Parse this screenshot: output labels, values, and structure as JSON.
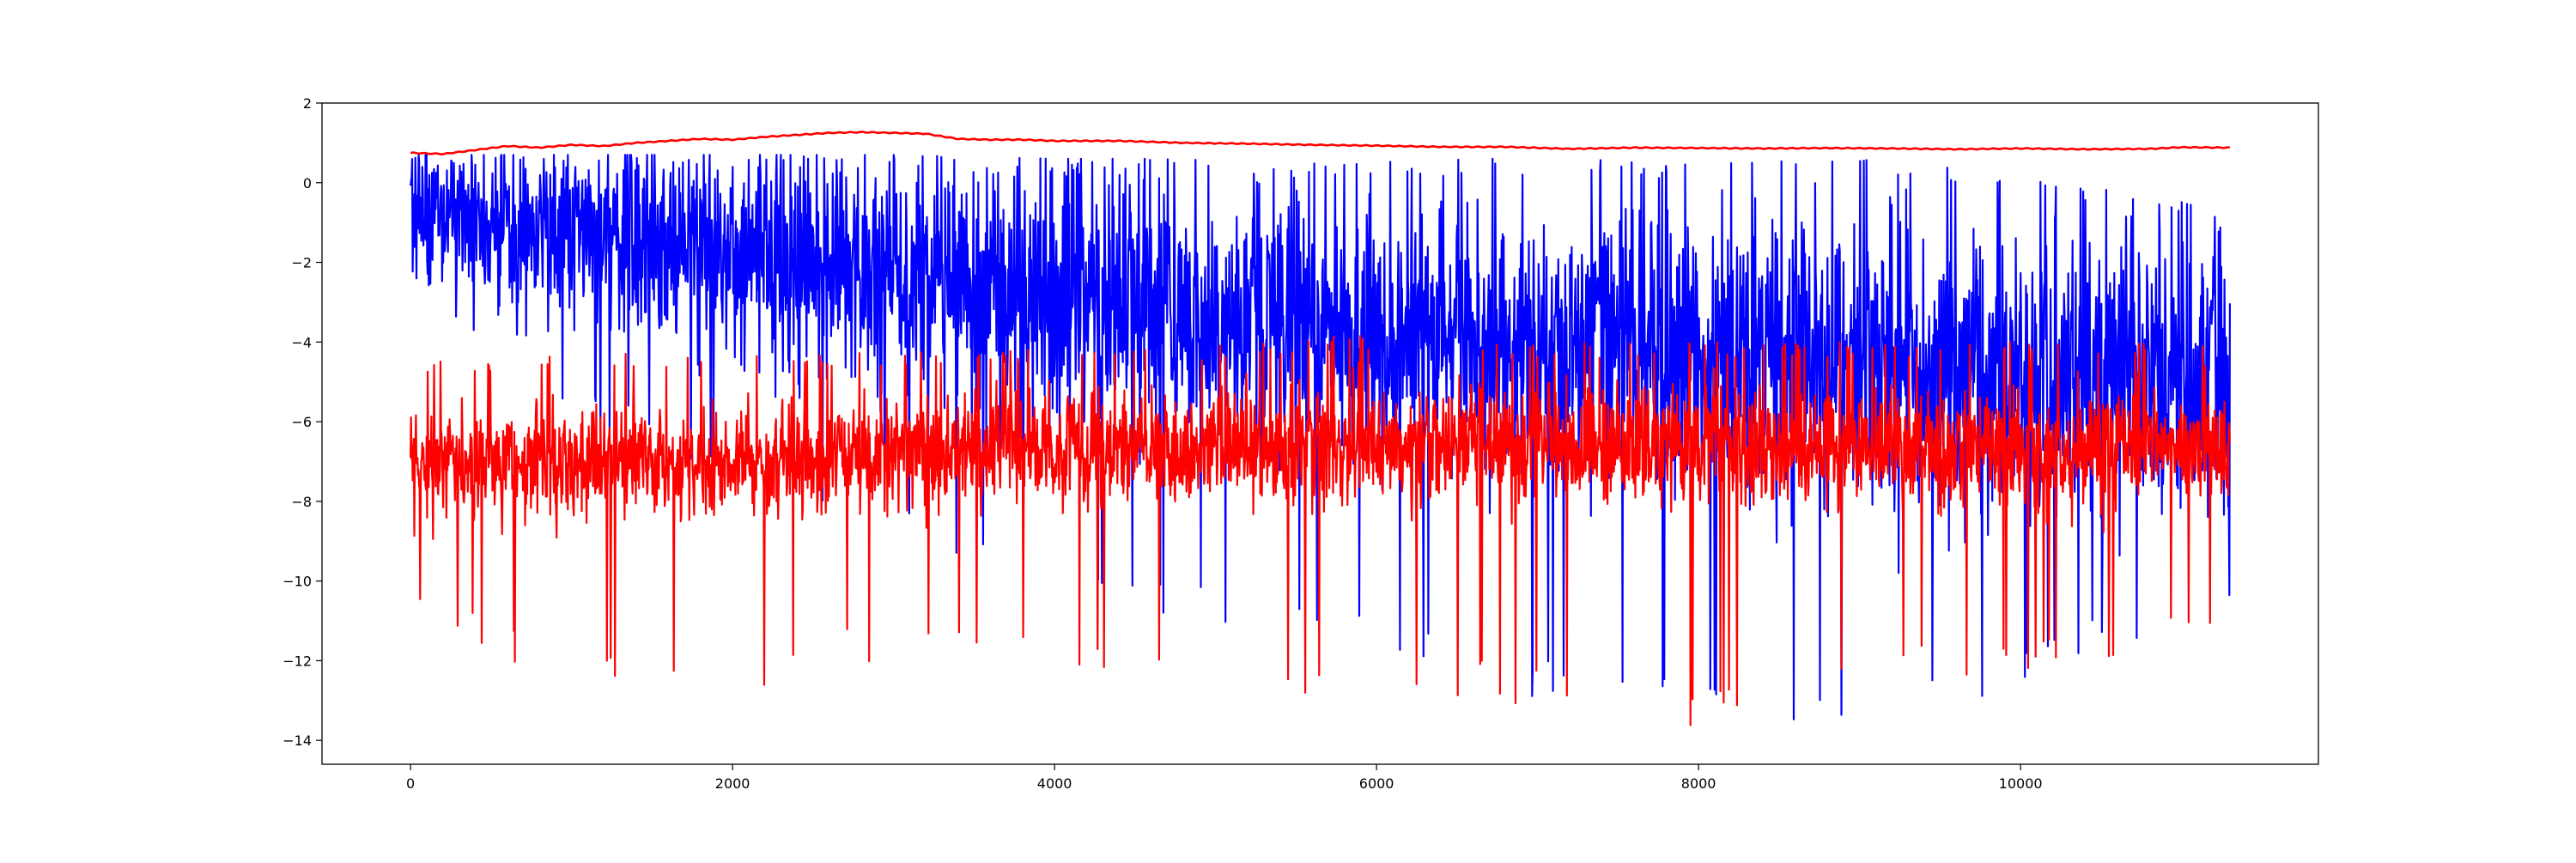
{
  "chart_data": {
    "type": "line",
    "title": "",
    "xlabel": "",
    "ylabel": "",
    "xlim": [
      -550,
      11850
    ],
    "ylim": [
      -14.6,
      2.0
    ],
    "x_ticks": [
      0,
      2000,
      4000,
      6000,
      8000,
      10000
    ],
    "x_tick_labels": [
      "0",
      "2000",
      "4000",
      "6000",
      "8000",
      "10000"
    ],
    "y_ticks": [
      2,
      0,
      -2,
      -4,
      -6,
      -8,
      -10,
      -12,
      -14
    ],
    "y_tick_labels": [
      "2",
      "0",
      "−2",
      "−4",
      "−6",
      "−8",
      "−10",
      "−12",
      "−14"
    ],
    "grid": false,
    "legend": "none",
    "x_range": [
      0,
      11300
    ],
    "series": [
      {
        "color": "#0000ff",
        "description_points": {
          "x": [
            0,
            1000,
            2000,
            3000,
            4000,
            5000,
            6000,
            7000,
            8000,
            9000,
            10000,
            11300
          ],
          "center": [
            -0.9,
            -1.3,
            -1.8,
            -2.4,
            -2.9,
            -3.3,
            -3.6,
            -4.0,
            -4.3,
            -4.5,
            -4.7,
            -4.8
          ],
          "spread": [
            1.5,
            2.0,
            2.5,
            2.7,
            2.8,
            2.9,
            3.0,
            3.1,
            3.2,
            3.3,
            3.3,
            3.3
          ],
          "max": [
            0.7,
            0.7,
            0.7,
            0.7,
            0.6,
            0.6,
            0.6,
            0.6,
            0.6,
            0.6,
            0.2,
            -0.6
          ],
          "min": [
            -3.0,
            -6.0,
            -8.0,
            -9.0,
            -10.5,
            -11.0,
            -12.0,
            -13.0,
            -13.7,
            -13.4,
            -12.8,
            -11.0
          ]
        }
      },
      {
        "color": "#ff0000",
        "description_points": {
          "x": [
            0,
            1000,
            2000,
            3000,
            4000,
            5000,
            6000,
            7000,
            8000,
            9000,
            10000,
            11300
          ],
          "center": [
            -7.1,
            -7.0,
            -7.0,
            -6.8,
            -6.7,
            -6.6,
            -6.6,
            -6.6,
            -6.6,
            -6.7,
            -6.7,
            -6.7
          ],
          "spread": [
            1.2,
            1.2,
            1.2,
            1.3,
            1.3,
            1.3,
            1.3,
            1.3,
            1.3,
            1.3,
            1.3,
            1.3
          ],
          "max": [
            -4.5,
            -4.3,
            -4.2,
            -4.2,
            -4.2,
            -4.0,
            -3.8,
            -4.0,
            -4.0,
            -4.0,
            -4.0,
            -4.0
          ],
          "min": [
            -10.8,
            -12.9,
            -13.3,
            -12.0,
            -12.3,
            -12.9,
            -12.9,
            -13.3,
            -13.9,
            -12.5,
            -12.5,
            -11.5
          ]
        }
      },
      {
        "color": "#ff0000",
        "x": [
          0,
          200,
          400,
          600,
          800,
          1000,
          1200,
          1400,
          1600,
          1800,
          2000,
          2200,
          2400,
          2600,
          2800,
          3000,
          3200,
          3400,
          3600,
          3800,
          4000,
          4400,
          4800,
          5200,
          5600,
          6000,
          6400,
          6800,
          7200,
          7600,
          8000,
          8400,
          8800,
          9200,
          9600,
          10000,
          10400,
          10800,
          11000,
          11300
        ],
        "y": [
          0.75,
          0.72,
          0.82,
          0.92,
          0.88,
          0.95,
          0.92,
          1.0,
          1.05,
          1.1,
          1.08,
          1.15,
          1.2,
          1.25,
          1.27,
          1.25,
          1.23,
          1.1,
          1.08,
          1.08,
          1.05,
          1.05,
          1.0,
          0.98,
          0.95,
          0.93,
          0.9,
          0.9,
          0.85,
          0.88,
          0.87,
          0.86,
          0.87,
          0.86,
          0.84,
          0.86,
          0.84,
          0.85,
          0.89,
          0.88
        ]
      }
    ]
  }
}
